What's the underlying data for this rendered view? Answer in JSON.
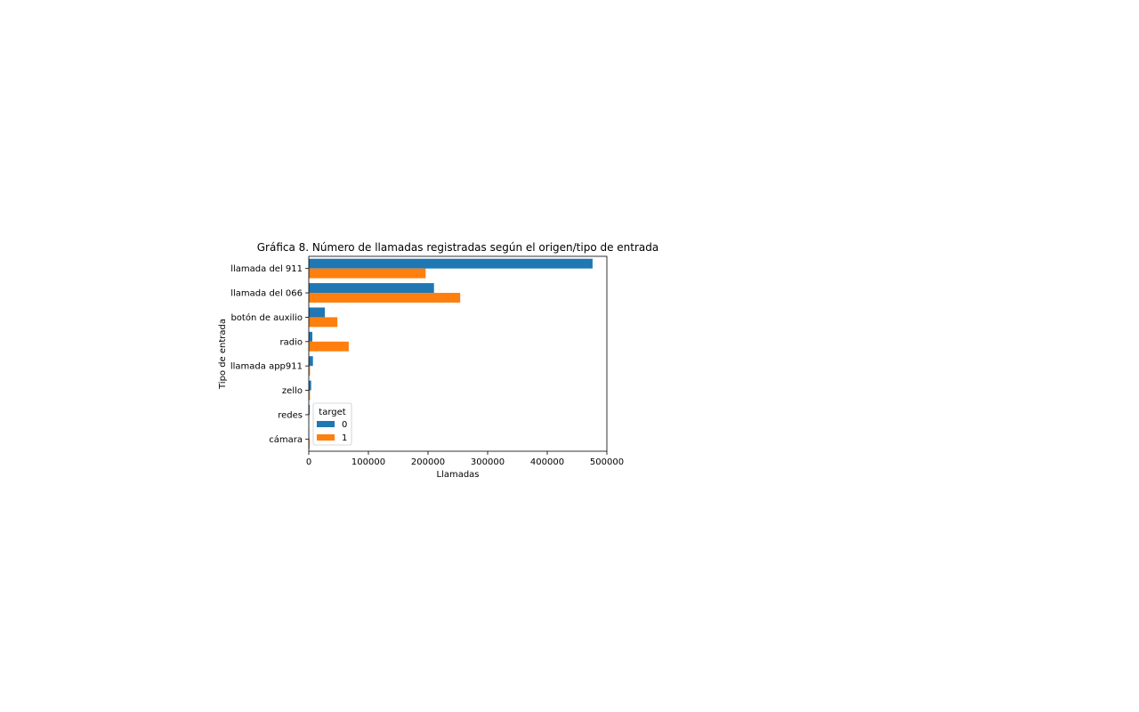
{
  "chart_data": {
    "type": "bar",
    "orientation": "horizontal",
    "title": "Gráfica 8. Número de llamadas registradas según el origen/tipo de entrada",
    "xlabel": "Llamadas",
    "ylabel": "Tipo de entrada",
    "xlim": [
      0,
      500000
    ],
    "xticks": [
      0,
      100000,
      200000,
      300000,
      400000,
      500000
    ],
    "xtick_labels": [
      "0",
      "100000",
      "200000",
      "300000",
      "400000",
      "500000"
    ],
    "categories": [
      "llamada del 911",
      "llamada del 066",
      "botón de auxilio",
      "radio",
      "llamada app911",
      "zello",
      "redes",
      "cámara"
    ],
    "series": [
      {
        "name": "0",
        "color": "#1f77b4",
        "values": [
          476000,
          210000,
          27000,
          6000,
          7000,
          4000,
          1500,
          600
        ]
      },
      {
        "name": "1",
        "color": "#ff7f0e",
        "values": [
          196000,
          254000,
          48000,
          67000,
          2000,
          2000,
          300,
          1500
        ]
      }
    ],
    "legend": {
      "title": "target",
      "placement": "lower-left",
      "entries": [
        "0",
        "1"
      ]
    },
    "grid": false
  }
}
